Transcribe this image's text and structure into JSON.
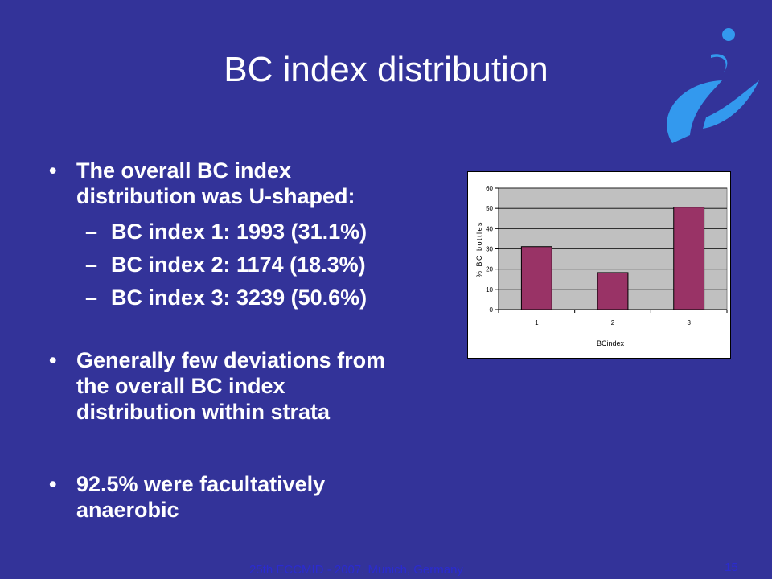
{
  "slide": {
    "title": "BC index distribution",
    "bullets": [
      {
        "text_lines": [
          "The overall BC index",
          "distribution was U-shaped:"
        ]
      },
      {
        "text_lines": [
          "Generally few deviations from",
          "the overall BC index",
          "distribution within strata"
        ]
      },
      {
        "text_lines": [
          "92.5% were facultatively",
          "anaerobic"
        ]
      }
    ],
    "subitems": [
      "BC index 1: 1993 (31.1%)",
      "BC index 2: 1174 (18.3%)",
      "BC index 3: 3239 (50.6%)"
    ],
    "bullet_glyph": "•",
    "dash_glyph": "–",
    "footer": "25th ECCMID - 2007, Munich, Germany",
    "page_number": "15"
  },
  "colors": {
    "background": "#333399",
    "bar": "#993366",
    "plot_area": "#c0c0c0",
    "logo": "#3399ee",
    "footer_text": "#2b2bcf"
  },
  "chart_data": {
    "type": "bar",
    "categories": [
      "1",
      "2",
      "3"
    ],
    "values": [
      31.1,
      18.3,
      50.6
    ],
    "xlabel": "BCindex",
    "ylabel": "% BC bottles",
    "ylim": [
      0,
      60
    ],
    "yticks": [
      "0",
      "10",
      "20",
      "30",
      "40",
      "50",
      "60"
    ],
    "grid": true,
    "legend": "none"
  }
}
